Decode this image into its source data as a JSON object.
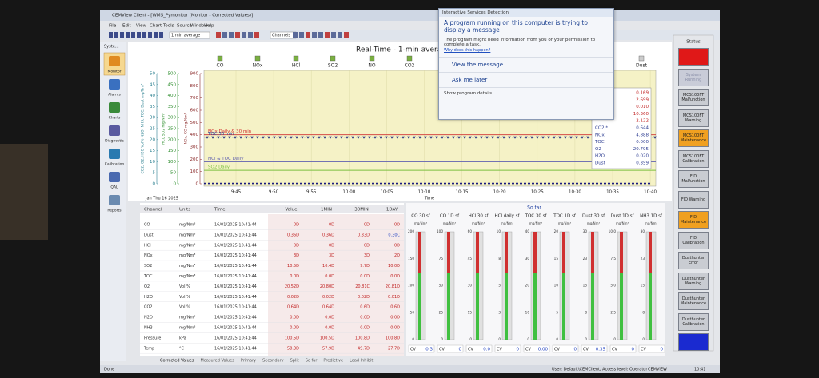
{
  "window": {
    "title": "CEMView Client - [WMS_Pymonitor (Monitor - Corrected Values)]",
    "menu": [
      "File",
      "Edit",
      "View",
      "Chart",
      "Tools",
      "Source",
      "Window",
      "Help"
    ],
    "averaging": "1 min average",
    "channels": "Channels"
  },
  "sidebar": {
    "title": "Syste...",
    "items": [
      "Monitor",
      "Alarms",
      "Charts",
      "Diagnostic",
      "Calibration",
      "QAL",
      "Reports"
    ]
  },
  "chart": {
    "title": "Real-Time - 1-min averag",
    "tabs": [
      "CO",
      "NOx",
      "HCl",
      "SO2",
      "NO",
      "CO2",
      "Dust"
    ],
    "axes": [
      {
        "label": "NOx, CO mg/Nm³",
        "color": "#8b2a2a",
        "ylim": [
          0,
          900
        ],
        "yticks": [
          0,
          100,
          200,
          300,
          400,
          500,
          600,
          700,
          800,
          900
        ]
      },
      {
        "label": "HCl, SO2 mg/Nm³",
        "color": "#2f8f2f",
        "ylim": [
          0,
          500
        ],
        "yticks": [
          0,
          50,
          100,
          150,
          200,
          250,
          300,
          350,
          400,
          450,
          500
        ]
      },
      {
        "label": "CO2, O2, H2O Vol% N2O, NH3, TOC, Dust mg/Nm³",
        "color": "#2a7f8f",
        "ylim": [
          0,
          50
        ],
        "yticks": [
          0,
          5,
          10,
          15,
          20,
          25,
          30,
          35,
          40,
          45,
          50
        ]
      }
    ],
    "limits": [
      {
        "label": "NOx Daily & 30 min",
        "value": 400,
        "color": "#d03030"
      },
      {
        "label": "TOC 30 min",
        "value": 380,
        "color": "#2040a0"
      },
      {
        "label": "HCl  & TOC Daily",
        "value": 180,
        "color": "#6060b0"
      },
      {
        "label": "SO2 Daily",
        "value": 110,
        "color": "#7cc040"
      }
    ],
    "categories": [
      "9:45",
      "9:50",
      "9:55",
      "10:00",
      "10:05",
      "10:10",
      "10:15",
      "10:20",
      "10:25",
      "10:30",
      "10:35",
      "10:40"
    ],
    "x_label": "Time",
    "date": "Jan Thu 16 2025",
    "series": [
      {
        "name": "CO",
        "color": "#1a1a80",
        "values": [
          3,
          3,
          3,
          3,
          3,
          3,
          3,
          3,
          3,
          3,
          3,
          3
        ]
      }
    ],
    "readings": [
      {
        "value": "0.169"
      },
      {
        "value": "2.699"
      },
      {
        "value": "0.010"
      },
      {
        "value": "10.360"
      },
      {
        "value": "2.122"
      },
      {
        "label": "CO2 *",
        "value": "0.644"
      },
      {
        "label": "NOx",
        "value": "4.888"
      },
      {
        "label": "TOC",
        "value": "0.000"
      },
      {
        "label": "O2",
        "value": "20.795"
      },
      {
        "label": "H2O",
        "value": "0.020"
      },
      {
        "label": "Dust",
        "value": "0.359"
      }
    ]
  },
  "popup": {
    "title": "Interactive Services Detection",
    "heading": "A program running on this computer is trying to display a message",
    "body": "The program might need information from you or your permission to complete a task.",
    "link": "Why does this happen?",
    "actions": [
      "View the message",
      "Ask me later"
    ],
    "details": "Show program details"
  },
  "table": {
    "header": [
      "Channel",
      "Units",
      "Time",
      "Value",
      "1MIN",
      "30MIN",
      "1DAY"
    ],
    "rows": [
      [
        "CO",
        "mg/Nm³",
        "16/01/2025 10:41:44",
        "0D",
        "0D",
        "0D",
        "0D"
      ],
      [
        "Dust",
        "mg/Nm³",
        "16/01/2025 10:41:44",
        "0.36D",
        "0.36D",
        "0.33D",
        "0.30C"
      ],
      [
        "HCl",
        "mg/Nm³",
        "16/01/2025 10:41:44",
        "0D",
        "0D",
        "0D",
        "0D"
      ],
      [
        "NOx",
        "mg/Nm³",
        "16/01/2025 10:41:44",
        "3D",
        "3D",
        "3D",
        "2D"
      ],
      [
        "SO2",
        "mg/Nm³",
        "16/01/2025 10:41:44",
        "10.5D",
        "10.4D",
        "9.7D",
        "10.0D"
      ],
      [
        "TOC",
        "mg/Nm³",
        "16/01/2025 10:41:44",
        "0.0D",
        "0.0D",
        "0.0D",
        "0.0D"
      ],
      [
        "O2",
        "Vol %",
        "16/01/2025 10:41:44",
        "20.52D",
        "20.80D",
        "20.81C",
        "20.81D"
      ],
      [
        "H2O",
        "Vol %",
        "16/01/2025 10:41:44",
        "0.02D",
        "0.02D",
        "0.02D",
        "0.01D"
      ],
      [
        "CO2",
        "Vol %",
        "16/01/2025 10:41:44",
        "0.64D",
        "0.64D",
        "0.6D",
        "0.6D"
      ],
      [
        "N2O",
        "mg/Nm³",
        "16/01/2025 10:41:44",
        "0.0D",
        "0.0D",
        "0.0D",
        "0.0D"
      ],
      [
        "NH3",
        "mg/Nm³",
        "16/01/2025 10:41:44",
        "0.0D",
        "0.0D",
        "0.0D",
        "0.0D"
      ],
      [
        "Pressure",
        "kPa",
        "16/01/2025 10:41:44",
        "100.5D",
        "100.5D",
        "100.8D",
        "100.8D"
      ],
      [
        "Temp",
        "°C",
        "16/01/2025 10:41:44",
        "58.3D",
        "57.9D",
        "49.7D",
        "27.7D"
      ]
    ]
  },
  "gauges": {
    "title": "So far",
    "items": [
      {
        "title": "CO 30 sf",
        "unit": "mg/Nm³",
        "ticks": [
          "200",
          "150",
          "100",
          "50",
          "0"
        ],
        "cv": "0.3"
      },
      {
        "title": "CO 1D sf",
        "unit": "mg/Nm³",
        "ticks": [
          "100",
          "75",
          "50",
          "25",
          "0"
        ],
        "cv": "0"
      },
      {
        "title": "HCl 30 sf",
        "unit": "mg/Nm³",
        "ticks": [
          "60",
          "45",
          "30",
          "15",
          "0"
        ],
        "cv": "0.0"
      },
      {
        "title": "HCl daily sf",
        "unit": "mg/Nm³",
        "ticks": [
          "10",
          "8",
          "5",
          "3",
          "0"
        ],
        "cv": "0"
      },
      {
        "title": "TOC 30 sf",
        "unit": "mg/Nm³",
        "ticks": [
          "40",
          "30",
          "20",
          "10",
          "0"
        ],
        "cv": "0.00"
      },
      {
        "title": "TOC 1D sf",
        "unit": "mg/Nm³",
        "ticks": [
          "20",
          "15",
          "10",
          "5",
          "0"
        ],
        "cv": "0"
      },
      {
        "title": "Dust 30 sf",
        "unit": "mg/Nm³",
        "ticks": [
          "30",
          "23",
          "15",
          "8",
          "0"
        ],
        "cv": "0.35"
      },
      {
        "title": "Dust 1D sf",
        "unit": "mg/Nm³",
        "ticks": [
          "10.0",
          "7.5",
          "5.0",
          "2.5",
          "0"
        ],
        "cv": "0"
      },
      {
        "title": "NH3 1D sf",
        "unit": "mg/Nm³",
        "ticks": [
          "30",
          "23",
          "15",
          "8",
          "0"
        ],
        "cv": "0"
      }
    ]
  },
  "status": {
    "title": "Status",
    "buttons": [
      {
        "color": "#e01818"
      },
      {
        "label": "System Running",
        "color": "#c9ccd8"
      },
      {
        "label": "MCS100FT Malfunction",
        "color": "#c9ccd2"
      },
      {
        "label": "MCS100FT Warning",
        "color": "#c9ccd2"
      },
      {
        "label": "MCS100FT Maintenance",
        "color": "#f0a020"
      },
      {
        "label": "MCS100FT Calibration",
        "color": "#c9ccd2"
      },
      {
        "label": "FID Malfunction",
        "color": "#c9ccd2"
      },
      {
        "label": "FID Warning",
        "color": "#c9ccd2"
      },
      {
        "label": "FID Maintenance",
        "color": "#f0a020"
      },
      {
        "label": "FID Calibration",
        "color": "#c9ccd2"
      },
      {
        "label": "Dusthunter Error",
        "color": "#c9ccd2"
      },
      {
        "label": "Dusthunter Warning",
        "color": "#c9ccd2"
      },
      {
        "label": "Dusthunter Maintenance",
        "color": "#c9ccd2"
      },
      {
        "label": "Dusthunter Calibration",
        "color": "#c9ccd2"
      },
      {
        "color": "#1a2ad0"
      }
    ]
  },
  "bottom_tabs": [
    "Corrected Values",
    "Measured Values",
    "Primary",
    "Secondary",
    "Split",
    "So far",
    "Predictive",
    "Load Inhibit"
  ],
  "status_bar": [
    "Done",
    "User: Default\\CEMClient, Access level: Operator",
    "CEMVIEW",
    "10:41"
  ]
}
